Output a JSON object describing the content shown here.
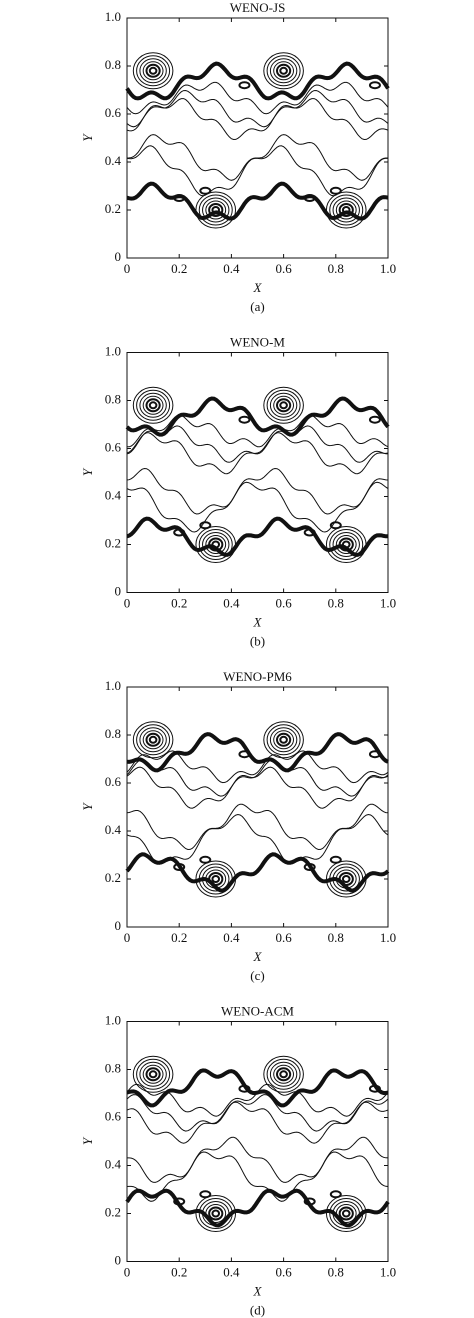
{
  "chart_data": [
    {
      "type": "contour",
      "title": "WENO-JS",
      "caption": "(a)",
      "xlabel": "X",
      "ylabel": "Y",
      "xlim": [
        0,
        1
      ],
      "ylim": [
        0,
        1
      ],
      "xticks": [
        0,
        0.2,
        0.4,
        0.6,
        0.8,
        {
          "value": 1,
          "label": "1.0"
        }
      ],
      "yticks": [
        0,
        0.2,
        0.4,
        0.6,
        0.8,
        {
          "value": 1,
          "label": "1.0"
        }
      ]
    },
    {
      "type": "contour",
      "title": "WENO-M",
      "caption": "(b)",
      "xlabel": "X",
      "ylabel": "Y",
      "xlim": [
        0,
        1
      ],
      "ylim": [
        0,
        1
      ],
      "xticks": [
        0,
        0.2,
        0.4,
        0.6,
        0.8,
        {
          "value": 1,
          "label": "1.0"
        }
      ],
      "yticks": [
        0,
        0.2,
        0.4,
        0.6,
        0.8,
        {
          "value": 1,
          "label": "1.0"
        }
      ]
    },
    {
      "type": "contour",
      "title": "WENO-PM6",
      "caption": "(c)",
      "xlabel": "X",
      "ylabel": "Y",
      "xlim": [
        0,
        1
      ],
      "ylim": [
        0,
        1
      ],
      "xticks": [
        0,
        0.2,
        0.4,
        0.6,
        0.8,
        {
          "value": 1,
          "label": "1.0"
        }
      ],
      "yticks": [
        0,
        0.2,
        0.4,
        0.6,
        0.8,
        {
          "value": 1,
          "label": "1.0"
        }
      ]
    },
    {
      "type": "contour",
      "title": "WENO-ACM",
      "caption": "(d)",
      "xlabel": "X",
      "ylabel": "Y",
      "xlim": [
        0,
        1
      ],
      "ylim": [
        0,
        1
      ],
      "xticks": [
        0,
        0.2,
        0.4,
        0.6,
        0.8,
        {
          "value": 1,
          "label": "1.0"
        }
      ],
      "yticks": [
        0,
        0.2,
        0.4,
        0.6,
        0.8,
        {
          "value": 1,
          "label": "1.0"
        }
      ]
    }
  ]
}
